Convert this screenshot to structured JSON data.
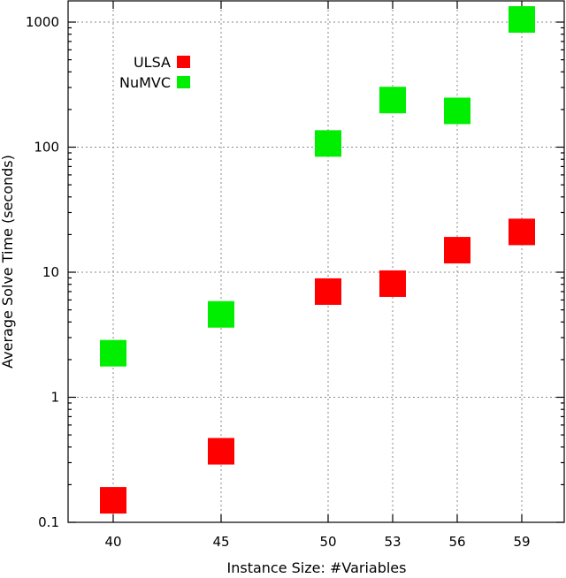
{
  "chart_data": {
    "type": "scatter",
    "xlabel": "Instance Size: #Variables",
    "ylabel": "Average Solve Time (seconds)",
    "x_ticks": [
      "40",
      "45",
      "50",
      "53",
      "56",
      "59"
    ],
    "y_scale": "log",
    "y_ticks": [
      {
        "value": 0.1,
        "label": "0.1"
      },
      {
        "value": 1,
        "label": "1"
      },
      {
        "value": 10,
        "label": "10"
      },
      {
        "value": 100,
        "label": "100"
      },
      {
        "value": 1000,
        "label": "1000"
      }
    ],
    "ylim": [
      0.1,
      1400
    ],
    "grid": true,
    "legend_position": "top-left",
    "series": [
      {
        "name": "ULSA",
        "color": "#ff0000",
        "marker": "square",
        "points": [
          {
            "x": "40",
            "y": 0.15
          },
          {
            "x": "45",
            "y": 0.37
          },
          {
            "x": "50",
            "y": 7.0
          },
          {
            "x": "53",
            "y": 8.1
          },
          {
            "x": "56",
            "y": 15.0
          },
          {
            "x": "59",
            "y": 21.0
          }
        ]
      },
      {
        "name": "NuMVC",
        "color": "#00ee00",
        "marker": "square",
        "points": [
          {
            "x": "40",
            "y": 2.25
          },
          {
            "x": "45",
            "y": 4.6
          },
          {
            "x": "50",
            "y": 107
          },
          {
            "x": "53",
            "y": 238
          },
          {
            "x": "56",
            "y": 195
          },
          {
            "x": "59",
            "y": 1050
          }
        ]
      }
    ]
  }
}
